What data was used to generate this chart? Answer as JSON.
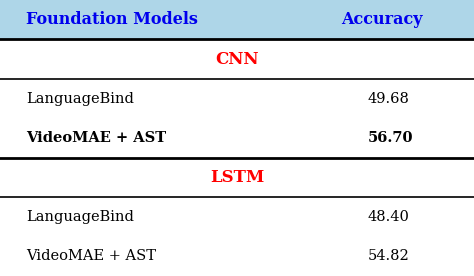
{
  "header": [
    "Foundation Models",
    "Accuracy"
  ],
  "header_color": "#0000EE",
  "header_bg": "#aed6e8",
  "section_cnn": "CNN",
  "section_lstm": "LSTM",
  "section_color": "#FF0000",
  "rows_cnn": [
    {
      "model": "LanguageBind",
      "accuracy": "49.68",
      "bold": false
    },
    {
      "model": "VideoMAE + AST",
      "accuracy": "56.70",
      "bold": true
    }
  ],
  "rows_lstm": [
    {
      "model": "LanguageBind",
      "accuracy": "48.40",
      "bold": false
    },
    {
      "model": "VideoMAE + AST",
      "accuracy": "54.82",
      "bold": false
    }
  ],
  "bg_color": "#ffffff",
  "row_text_color": "#000000",
  "fig_width": 4.74,
  "fig_height": 2.76,
  "dpi": 100
}
